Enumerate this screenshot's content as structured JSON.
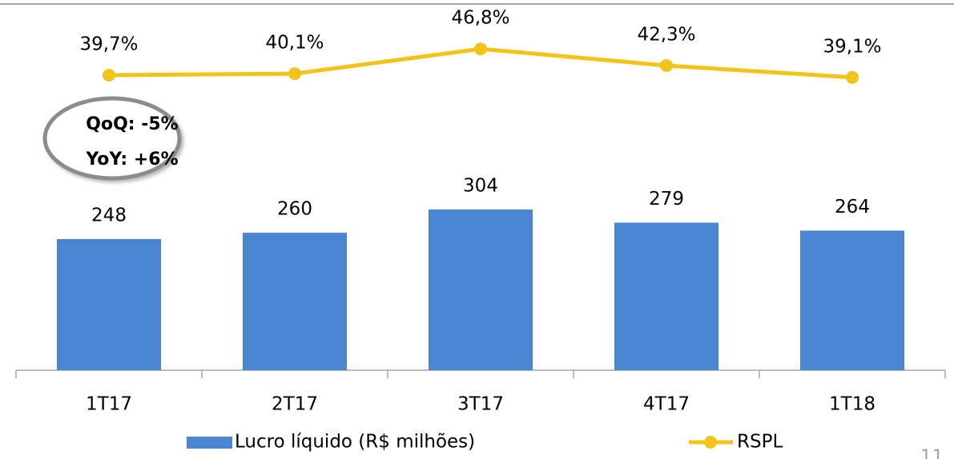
{
  "chart_data": {
    "type": "bar",
    "categories": [
      "1T17",
      "2T17",
      "3T17",
      "4T17",
      "1T18"
    ],
    "series": [
      {
        "name": "Lucro líquido (R$ milhões)",
        "color": "#4a86d2",
        "values": [
          248,
          260,
          304,
          279,
          264
        ]
      },
      {
        "name": "RSPL",
        "type": "line",
        "axis": "y2",
        "color": "#f2c318",
        "values": [
          39.7,
          40.1,
          46.8,
          42.3,
          39.1
        ],
        "value_labels": [
          "39,7%",
          "40,1%",
          "46,8%",
          "42,3%",
          "39,1%"
        ]
      }
    ],
    "ylim": [
      0,
      700
    ],
    "y2lim": [
      -40,
      60
    ],
    "annotations": [
      "QoQ: -5%",
      "YoY: +6%"
    ],
    "page_number": "11"
  }
}
